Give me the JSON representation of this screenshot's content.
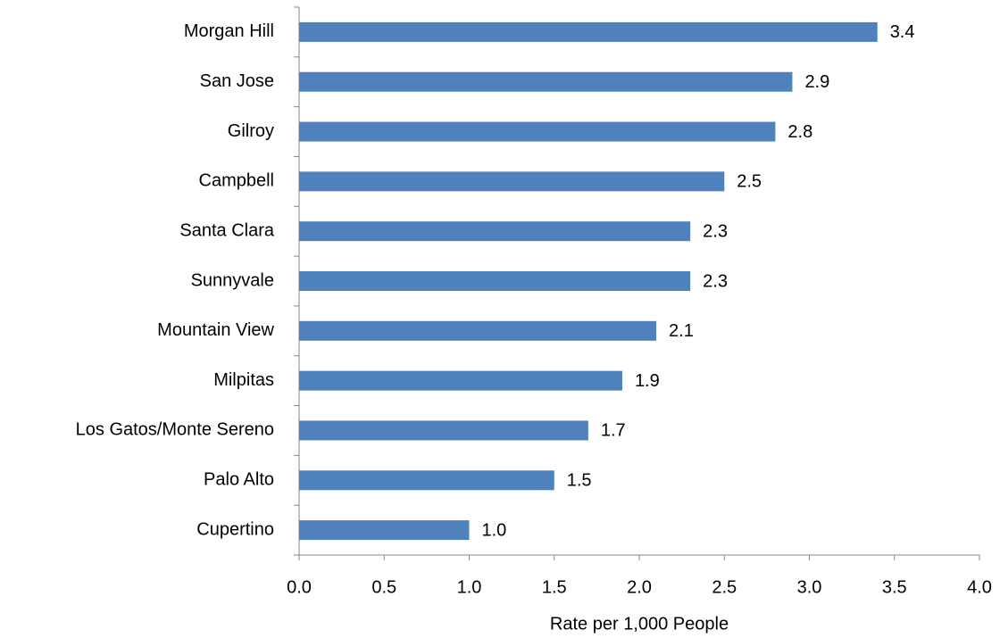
{
  "chart_data": {
    "type": "bar",
    "orientation": "horizontal",
    "x_label": "Rate per 1,000 People",
    "categories": [
      "Morgan Hill",
      "San Jose",
      "Gilroy",
      "Campbell",
      "Santa Clara",
      "Sunnyvale",
      "Mountain View",
      "Milpitas",
      "Los Gatos/Monte Sereno",
      "Palo Alto",
      "Cupertino"
    ],
    "values": [
      3.4,
      2.9,
      2.8,
      2.5,
      2.3,
      2.3,
      2.1,
      1.9,
      1.7,
      1.5,
      1
    ],
    "value_labels": [
      "3.4",
      "2.9",
      "2.8",
      "2.5",
      "2.3",
      "2.3",
      "2.1",
      "1.9",
      "1.7",
      "1.5",
      "1.0"
    ],
    "color": "#4f81bd",
    "xlim": [
      0,
      4
    ],
    "xticks": [
      {
        "value": 0,
        "label": "0.0"
      },
      0.5,
      {
        "value": 1,
        "label": "1.0"
      },
      1.5,
      {
        "value": 2,
        "label": "2.0"
      },
      2.5,
      {
        "value": 3,
        "label": "3.0"
      },
      3.5,
      {
        "value": 4,
        "label": "4.0"
      }
    ],
    "grid": false
  }
}
